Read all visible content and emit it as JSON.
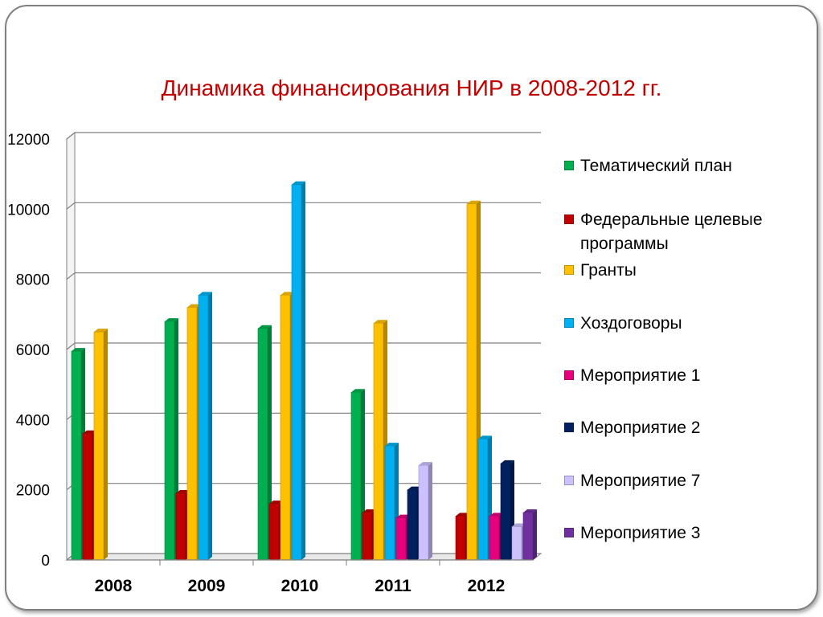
{
  "title": "Динамика финансирования НИР в 2008-2012 гг.",
  "colors": {
    "title": "#c00000",
    "grid": "#7f7f7f"
  },
  "chart_data": {
    "type": "bar",
    "title": "Динамика финансирования НИР в 2008-2012 гг.",
    "xlabel": "",
    "ylabel": "",
    "categories": [
      "2008",
      "2009",
      "2010",
      "2011",
      "2012"
    ],
    "ylim": [
      0,
      12000
    ],
    "yticks": [
      "0",
      "2000",
      "4000",
      "6000",
      "8000",
      "10000",
      "12000"
    ],
    "grid": true,
    "legend_position": "right",
    "style": "3d-clustered-column",
    "series": [
      {
        "name": "Тематический план",
        "color": "#00b050",
        "values": [
          5950,
          6800,
          6600,
          4780,
          null
        ]
      },
      {
        "name": "Федеральные целевые программы",
        "color": "#c00000",
        "values": [
          3600,
          1900,
          1600,
          1350,
          1250
        ]
      },
      {
        "name": "Гранты",
        "color": "#ffc000",
        "values": [
          6500,
          7200,
          7550,
          6750,
          10150
        ]
      },
      {
        "name": "Хоздоговоры",
        "color": "#00b0f0",
        "values": [
          null,
          7550,
          10700,
          3250,
          3450
        ]
      },
      {
        "name": "Мероприятие 1",
        "color": "#e6007e",
        "values": [
          null,
          null,
          null,
          1200,
          1250
        ]
      },
      {
        "name": "Мероприятие 2",
        "color": "#002060",
        "values": [
          null,
          null,
          null,
          2000,
          2750
        ]
      },
      {
        "name": "Мероприятие 7",
        "color": "#ccc0ff",
        "values": [
          null,
          null,
          null,
          2700,
          950
        ]
      },
      {
        "name": "Мероприятие 3",
        "color": "#7030a0",
        "values": [
          null,
          null,
          null,
          null,
          1350
        ]
      }
    ]
  }
}
